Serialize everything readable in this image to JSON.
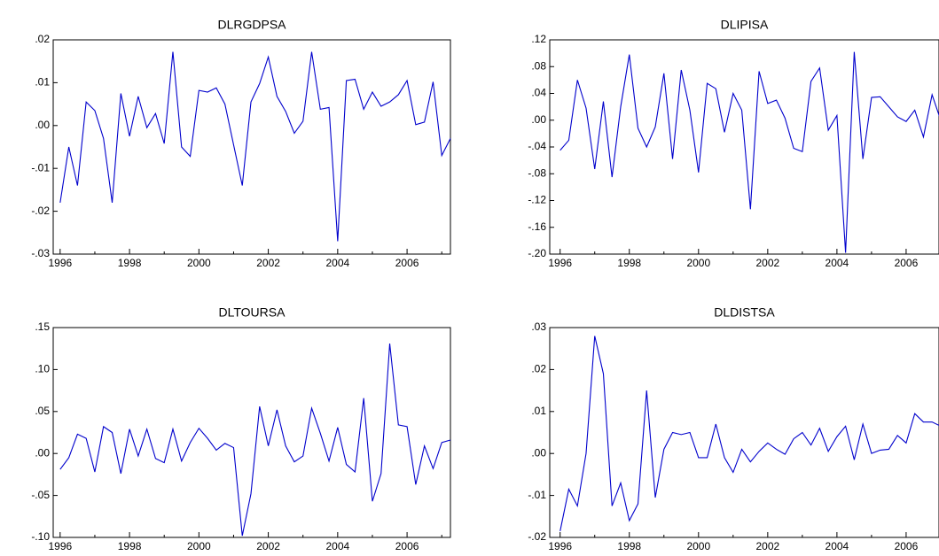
{
  "chart_data": [
    {
      "type": "line",
      "title": "DLRGDPSA",
      "color": "#0000cc",
      "x": [
        1996,
        1996.25,
        1996.5,
        1996.75,
        1997,
        1997.25,
        1997.5,
        1997.75,
        1998,
        1998.25,
        1998.5,
        1998.75,
        1999,
        1999.25,
        1999.5,
        1999.75,
        2000,
        2000.25,
        2000.5,
        2000.75,
        2001,
        2001.25,
        2001.5,
        2001.75,
        2002,
        2002.25,
        2002.5,
        2002.75,
        2003,
        2003.25,
        2003.5,
        2003.75,
        2004,
        2004.25,
        2004.5,
        2004.75,
        2005,
        2005.25,
        2005.5,
        2005.75,
        2006,
        2006.25,
        2006.5,
        2006.75,
        2007,
        2007.25
      ],
      "values": [
        -0.018,
        -0.005,
        -0.014,
        0.0055,
        0.0035,
        -0.003,
        -0.018,
        0.0075,
        -0.0025,
        0.0068,
        -0.0005,
        0.0028,
        -0.0042,
        0.0172,
        -0.005,
        -0.0072,
        0.0082,
        0.0078,
        0.0088,
        0.005,
        -0.0045,
        -0.014,
        0.0055,
        0.0098,
        0.016,
        0.0068,
        0.0033,
        -0.0018,
        0.001,
        0.0172,
        0.0038,
        0.0042,
        -0.027,
        0.0105,
        0.0108,
        0.0038,
        0.0078,
        0.0045,
        0.0055,
        0.0072,
        0.0105,
        0.0002,
        0.0008,
        0.0102,
        -0.007,
        -0.003
      ],
      "xlim": [
        1995.8,
        2007.25
      ],
      "xticks": [
        1996,
        1998,
        2000,
        2002,
        2004,
        2006
      ],
      "xminorticks": [
        1997,
        1999,
        2001,
        2003,
        2005,
        2007
      ],
      "ylim": [
        -0.03,
        0.02
      ],
      "yticks": [
        {
          "value": -0.03,
          "label": "-.03"
        },
        {
          "value": -0.02,
          "label": "-.02"
        },
        {
          "value": -0.01,
          "label": "-.01"
        },
        {
          "value": 0,
          "label": ".00"
        },
        {
          "value": 0.01,
          "label": ".01"
        },
        {
          "value": 0.02,
          "label": ".02"
        }
      ]
    },
    {
      "type": "line",
      "title": "DLIPISA",
      "color": "#0000cc",
      "x": [
        1996,
        1996.25,
        1996.5,
        1996.75,
        1997,
        1997.25,
        1997.5,
        1997.75,
        1998,
        1998.25,
        1998.5,
        1998.75,
        1999,
        1999.25,
        1999.5,
        1999.75,
        2000,
        2000.25,
        2000.5,
        2000.75,
        2001,
        2001.25,
        2001.5,
        2001.75,
        2002,
        2002.25,
        2002.5,
        2002.75,
        2003,
        2003.25,
        2003.5,
        2003.75,
        2004,
        2004.25,
        2004.5,
        2004.75,
        2005,
        2005.25,
        2005.5,
        2005.75,
        2006,
        2006.25,
        2006.5,
        2006.75,
        2007,
        2007.25
      ],
      "values": [
        -0.045,
        -0.03,
        0.06,
        0.018,
        -0.073,
        0.028,
        -0.085,
        0.02,
        0.098,
        -0.012,
        -0.04,
        -0.01,
        0.07,
        -0.058,
        0.075,
        0.015,
        -0.078,
        0.055,
        0.047,
        -0.018,
        0.04,
        0.015,
        -0.133,
        0.073,
        0.025,
        0.03,
        0.003,
        -0.042,
        -0.047,
        0.058,
        0.078,
        -0.015,
        0.007,
        -0.198,
        0.102,
        -0.058,
        0.034,
        0.035,
        0.02,
        0.005,
        -0.002,
        0.015,
        -0.025,
        0.038,
        0,
        -0.065
      ],
      "xlim": [
        1995.7,
        2006.95
      ],
      "xticks": [
        1996,
        1998,
        2000,
        2002,
        2004,
        2006
      ],
      "xminorticks": [
        1997,
        1999,
        2001,
        2003,
        2005
      ],
      "ylim": [
        -0.2,
        0.12
      ],
      "yticks": [
        {
          "value": -0.2,
          "label": "-.20"
        },
        {
          "value": -0.16,
          "label": "-.16"
        },
        {
          "value": -0.12,
          "label": "-.12"
        },
        {
          "value": -0.08,
          "label": "-.08"
        },
        {
          "value": -0.04,
          "label": "-.04"
        },
        {
          "value": 0,
          "label": ".00"
        },
        {
          "value": 0.04,
          "label": ".04"
        },
        {
          "value": 0.08,
          "label": ".08"
        },
        {
          "value": 0.12,
          "label": ".12"
        }
      ]
    },
    {
      "type": "line",
      "title": "DLTOURSA",
      "color": "#0000cc",
      "x": [
        1996,
        1996.25,
        1996.5,
        1996.75,
        1997,
        1997.25,
        1997.5,
        1997.75,
        1998,
        1998.25,
        1998.5,
        1998.75,
        1999,
        1999.25,
        1999.5,
        1999.75,
        2000,
        2000.25,
        2000.5,
        2000.75,
        2001,
        2001.25,
        2001.5,
        2001.75,
        2002,
        2002.25,
        2002.5,
        2002.75,
        2003,
        2003.25,
        2003.5,
        2003.75,
        2004,
        2004.25,
        2004.5,
        2004.75,
        2005,
        2005.25,
        2005.5,
        2005.75,
        2006,
        2006.25,
        2006.5,
        2006.75,
        2007,
        2007.25
      ],
      "values": [
        -0.019,
        -0.005,
        0.023,
        0.018,
        -0.022,
        0.032,
        0.025,
        -0.024,
        0.029,
        -0.003,
        0.029,
        -0.006,
        -0.011,
        0.029,
        -0.009,
        0.013,
        0.03,
        0.018,
        0.004,
        0.012,
        0.007,
        -0.098,
        -0.048,
        0.056,
        0.009,
        0.052,
        0.009,
        -0.01,
        -0.003,
        0.054,
        0.024,
        -0.009,
        0.031,
        -0.013,
        -0.022,
        0.066,
        -0.057,
        -0.024,
        0.131,
        0.034,
        0.032,
        -0.037,
        0.009,
        -0.018,
        0.013,
        0.016
      ],
      "xlim": [
        1995.8,
        2007.25
      ],
      "xticks": [
        1996,
        1998,
        2000,
        2002,
        2004,
        2006
      ],
      "xminorticks": [
        1997,
        1999,
        2001,
        2003,
        2005,
        2007
      ],
      "ylim": [
        -0.1,
        0.15
      ],
      "yticks": [
        {
          "value": -0.1,
          "label": "-.10"
        },
        {
          "value": -0.05,
          "label": "-.05"
        },
        {
          "value": 0,
          "label": ".00"
        },
        {
          "value": 0.05,
          "label": ".05"
        },
        {
          "value": 0.1,
          "label": ".10"
        },
        {
          "value": 0.15,
          "label": ".15"
        }
      ]
    },
    {
      "type": "line",
      "title": "DLDISTSA",
      "color": "#0000cc",
      "x": [
        1996,
        1996.25,
        1996.5,
        1996.75,
        1997,
        1997.25,
        1997.5,
        1997.75,
        1998,
        1998.25,
        1998.5,
        1998.75,
        1999,
        1999.25,
        1999.5,
        1999.75,
        2000,
        2000.25,
        2000.5,
        2000.75,
        2001,
        2001.25,
        2001.5,
        2001.75,
        2002,
        2002.25,
        2002.5,
        2002.75,
        2003,
        2003.25,
        2003.5,
        2003.75,
        2004,
        2004.25,
        2004.5,
        2004.75,
        2005,
        2005.25,
        2005.5,
        2005.75,
        2006,
        2006.25,
        2006.5,
        2006.75,
        2007,
        2007.25
      ],
      "values": [
        -0.0185,
        -0.0085,
        -0.0125,
        0,
        0.028,
        0.019,
        -0.0125,
        -0.007,
        -0.016,
        -0.012,
        0.015,
        -0.0105,
        0.001,
        0.005,
        0.0045,
        0.005,
        -0.001,
        -0.001,
        0.007,
        -0.001,
        -0.0045,
        0.001,
        -0.002,
        0.0005,
        0.0025,
        0.001,
        -0.0002,
        0.0035,
        0.005,
        0.002,
        0.006,
        0.0005,
        0.004,
        0.0065,
        -0.0015,
        0.007,
        0,
        0.0008,
        0.001,
        0.0043,
        0.0025,
        0.0095,
        0.0075,
        0.0075,
        0.0065,
        0.0015
      ],
      "xlim": [
        1995.7,
        2006.95
      ],
      "xticks": [
        1996,
        1998,
        2000,
        2002,
        2004,
        2006
      ],
      "xminorticks": [
        1997,
        1999,
        2001,
        2003,
        2005
      ],
      "ylim": [
        -0.02,
        0.03
      ],
      "yticks": [
        {
          "value": -0.02,
          "label": "-.02"
        },
        {
          "value": -0.01,
          "label": "-.01"
        },
        {
          "value": 0,
          "label": ".00"
        },
        {
          "value": 0.01,
          "label": ".01"
        },
        {
          "value": 0.02,
          "label": ".02"
        },
        {
          "value": 0.03,
          "label": ".03"
        }
      ]
    }
  ]
}
